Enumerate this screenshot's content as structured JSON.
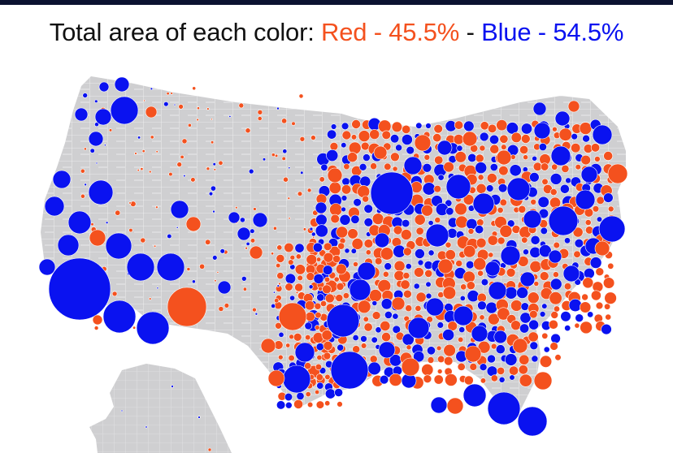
{
  "title": {
    "prefix": "Total area of each color: ",
    "red_label": "Red - 45.5%",
    "separator": " - ",
    "blue_label": "Blue - 54.5%"
  },
  "legend": [
    {
      "party": "Red",
      "share_percent": 45.5
    },
    {
      "party": "Blue",
      "share_percent": 54.5
    }
  ],
  "colors": {
    "red": "#f4511e",
    "blue": "#0a12f0",
    "land": "#cfcfd1",
    "border": "#ffffff",
    "title_text": "#111111"
  }
}
